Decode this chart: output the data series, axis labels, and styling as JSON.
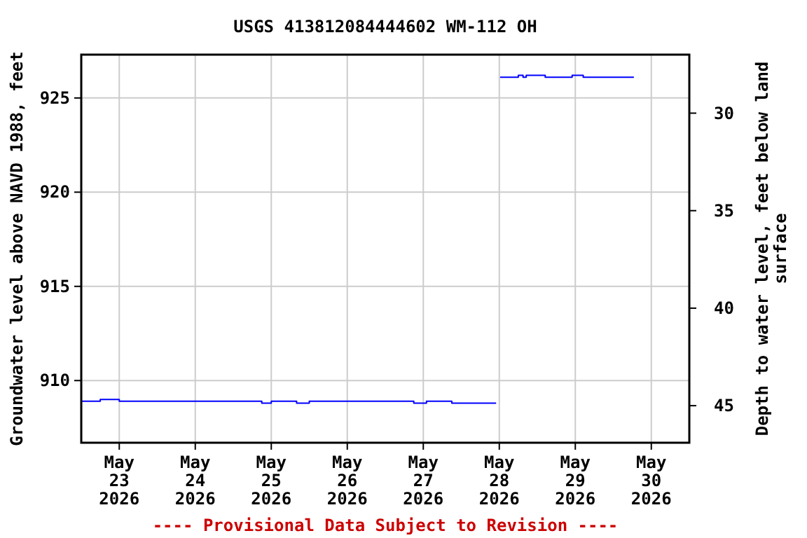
{
  "chart_data": {
    "type": "step",
    "title": "USGS 413812084444602 WM-112 OH",
    "ylabel": "Groundwater level above NAVD 1988, feet",
    "y2label": "Depth to water level, feet below land surface",
    "annotations": [
      "---- Provisional Data Subject to Revision ----"
    ],
    "x": [
      "2026-05-22T12:00",
      "2026-05-22T18:00",
      "2026-05-23T00:00",
      "2026-05-24T21:00",
      "2026-05-25T00:00",
      "2026-05-25T08:00",
      "2026-05-25T12:00",
      "2026-05-26T21:00",
      "2026-05-27T01:00",
      "2026-05-27T09:00",
      "2026-05-27T23:00",
      "2026-05-27T23:30",
      "2026-05-28T00:15",
      "2026-05-28T06:00",
      "2026-05-28T07:30",
      "2026-05-28T08:30",
      "2026-05-28T14:30",
      "2026-05-28T23:00",
      "2026-05-29T02:30",
      "2026-05-29T18:30"
    ],
    "series": [
      {
        "color": "#0000ff",
        "values": [
          908.9,
          909.0,
          908.9,
          908.8,
          908.9,
          908.8,
          908.9,
          908.8,
          908.9,
          908.8,
          908.8,
          null,
          926.1,
          926.2,
          926.1,
          926.2,
          926.1,
          926.2,
          926.1,
          926.1
        ]
      }
    ],
    "xlim": [
      "2026-05-22T12:00",
      "2026-05-30T12:00"
    ],
    "xticks": [
      {
        "value": "2026-05-23",
        "label": "May\n23\n2026"
      },
      {
        "value": "2026-05-24",
        "label": "May\n24\n2026"
      },
      {
        "value": "2026-05-25",
        "label": "May\n25\n2026"
      },
      {
        "value": "2026-05-26",
        "label": "May\n26\n2026"
      },
      {
        "value": "2026-05-27",
        "label": "May\n27\n2026"
      },
      {
        "value": "2026-05-28",
        "label": "May\n28\n2026"
      },
      {
        "value": "2026-05-29",
        "label": "May\n29\n2026"
      },
      {
        "value": "2026-05-30",
        "label": "May\n30\n2026"
      }
    ],
    "ylim": [
      906.7,
      927.3
    ],
    "yticks": [
      910,
      915,
      920,
      925
    ],
    "y2lim": [
      46.9,
      27.0
    ],
    "y2ticks": [
      30,
      35,
      40,
      45
    ],
    "grid": true,
    "line_style": "solid"
  }
}
